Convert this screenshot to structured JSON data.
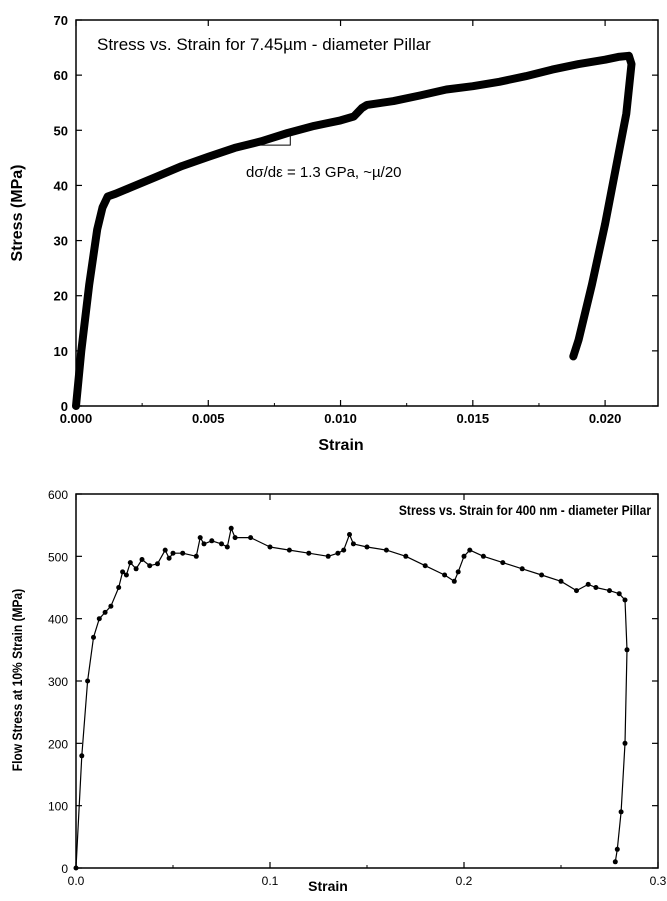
{
  "chart_data": [
    {
      "type": "line",
      "title": "Stress vs. Strain for 7.45µm - diameter Pillar",
      "xlabel": "Strain",
      "ylabel": "Stress (MPa)",
      "xlim": [
        0,
        0.022
      ],
      "ylim": [
        0,
        70
      ],
      "x_ticks": [
        "0.000",
        "0.005",
        "0.010",
        "0.015",
        "0.020"
      ],
      "y_ticks": [
        "0",
        "10",
        "20",
        "30",
        "40",
        "50",
        "60",
        "70"
      ],
      "annotation": "dσ/dε = 1.3 GPa, ~µ/20",
      "series": [
        {
          "x": [
            0.0,
            0.0002,
            0.0005,
            0.0008,
            0.001,
            0.0012,
            0.0015,
            0.002,
            0.003,
            0.004,
            0.005,
            0.006,
            0.007,
            0.008,
            0.009,
            0.01,
            0.0105,
            0.0108,
            0.011,
            0.012,
            0.013,
            0.014,
            0.015,
            0.016,
            0.017,
            0.018,
            0.019,
            0.02,
            0.0205,
            0.0209,
            0.021,
            0.0208,
            0.02,
            0.0195,
            0.019,
            0.0188
          ],
          "y": [
            0,
            10,
            22,
            32,
            36,
            38,
            38.5,
            39.5,
            41.5,
            43.5,
            45.2,
            46.8,
            48,
            49.5,
            50.8,
            51.8,
            52.5,
            54,
            54.6,
            55.3,
            56.3,
            57.4,
            58,
            58.8,
            59.8,
            61,
            62,
            62.8,
            63.3,
            63.5,
            62,
            53,
            33,
            22,
            12,
            9
          ]
        }
      ]
    },
    {
      "type": "line",
      "title": "Stress vs. Strain for 400 nm - diameter Pillar",
      "xlabel": "Strain",
      "ylabel": "Flow Stress at 10% Strain (MPa)",
      "xlim": [
        0,
        0.3
      ],
      "ylim": [
        0,
        600
      ],
      "x_ticks": [
        "0.0",
        "0.1",
        "0.2",
        "0.3"
      ],
      "y_ticks": [
        "0",
        "100",
        "200",
        "300",
        "400",
        "500",
        "600"
      ],
      "series": [
        {
          "x": [
            0.0,
            0.003,
            0.006,
            0.009,
            0.012,
            0.015,
            0.018,
            0.022,
            0.024,
            0.026,
            0.028,
            0.031,
            0.034,
            0.038,
            0.042,
            0.046,
            0.048,
            0.05,
            0.055,
            0.062,
            0.064,
            0.066,
            0.07,
            0.075,
            0.078,
            0.08,
            0.082,
            0.09,
            0.1,
            0.11,
            0.12,
            0.13,
            0.135,
            0.138,
            0.141,
            0.143,
            0.15,
            0.16,
            0.17,
            0.18,
            0.19,
            0.195,
            0.197,
            0.2,
            0.203,
            0.21,
            0.22,
            0.23,
            0.24,
            0.25,
            0.258,
            0.264,
            0.268,
            0.275,
            0.28,
            0.283,
            0.284,
            0.283,
            0.281,
            0.279,
            0.278
          ],
          "y": [
            0,
            180,
            300,
            370,
            400,
            410,
            420,
            450,
            475,
            470,
            490,
            480,
            495,
            485,
            488,
            510,
            497,
            505,
            505,
            500,
            530,
            520,
            525,
            520,
            515,
            545,
            530,
            530,
            515,
            510,
            505,
            500,
            505,
            510,
            535,
            520,
            515,
            510,
            500,
            485,
            470,
            460,
            475,
            500,
            510,
            500,
            490,
            480,
            470,
            460,
            445,
            455,
            450,
            445,
            440,
            430,
            350,
            200,
            90,
            30,
            10
          ]
        }
      ]
    }
  ]
}
